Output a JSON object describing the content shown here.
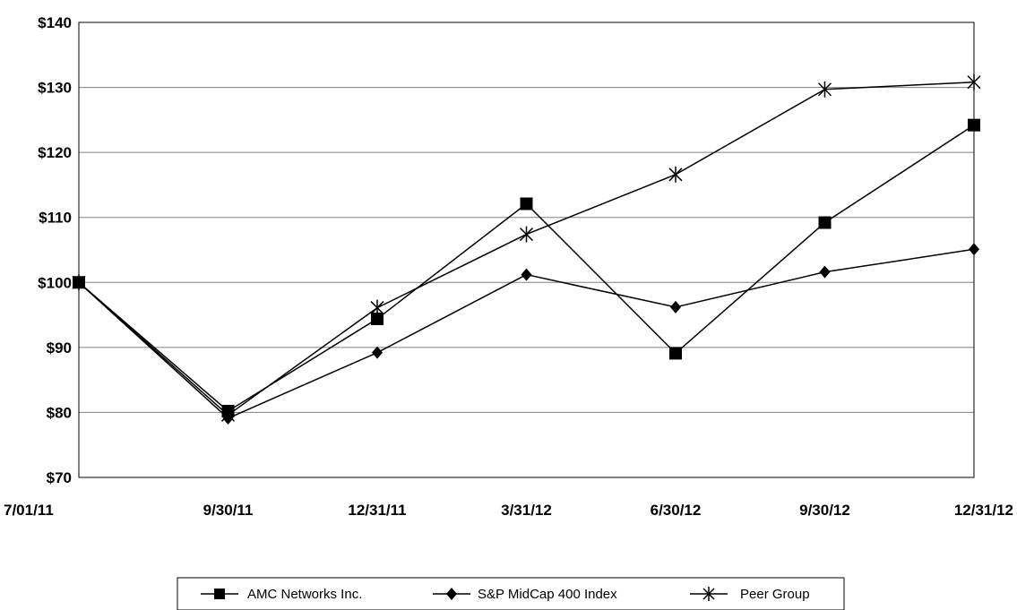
{
  "chart_data": {
    "type": "line",
    "categories": [
      "7/01/11",
      "9/30/11",
      "12/31/11",
      "3/31/12",
      "6/30/12",
      "9/30/12",
      "12/31/12"
    ],
    "ylim": [
      70,
      140
    ],
    "yticks": [
      70,
      80,
      90,
      100,
      110,
      120,
      130,
      140
    ],
    "ytick_labels": [
      "$70",
      "$80",
      "$90",
      "$100",
      "$110",
      "$120",
      "$130",
      "$140"
    ],
    "grid": true,
    "legend_position": "bottom",
    "series": [
      {
        "name": "AMC Networks Inc.",
        "marker": "square",
        "values": [
          100,
          80.2,
          94.4,
          112.1,
          89.1,
          109.2,
          124.2
        ]
      },
      {
        "name": "S&P MidCap 400 Index",
        "marker": "diamond",
        "values": [
          100,
          79.1,
          89.2,
          101.2,
          96.2,
          101.6,
          105.1
        ]
      },
      {
        "name": "Peer Group",
        "marker": "star",
        "values": [
          100,
          79.6,
          96.1,
          107.4,
          116.6,
          129.7,
          130.8
        ]
      }
    ],
    "colors": {
      "line": "#000000",
      "grid": "#808080",
      "background": "#ffffff"
    }
  }
}
